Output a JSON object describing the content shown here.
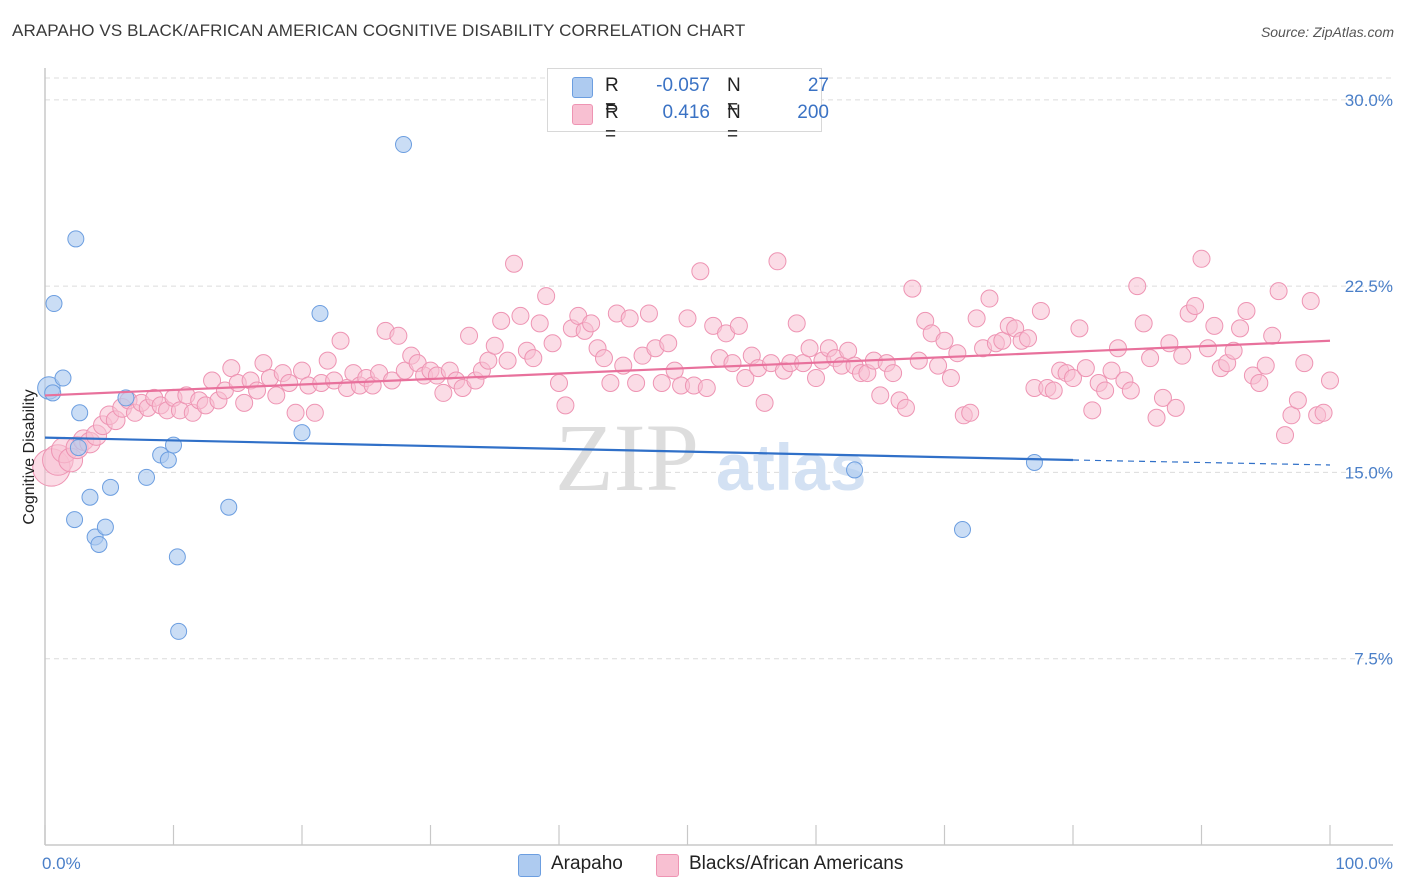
{
  "title": "ARAPAHO VS BLACK/AFRICAN AMERICAN COGNITIVE DISABILITY CORRELATION CHART",
  "source": "Source: ZipAtlas.com",
  "watermark": {
    "zip": "ZIP",
    "atlas": "atlas"
  },
  "colors": {
    "arapaho_fill": "#aecbf0",
    "arapaho_stroke": "#6c9ee0",
    "arapaho_line": "#3070c8",
    "black_fill": "#f8c0d2",
    "black_stroke": "#ee94b3",
    "black_line": "#e8719c",
    "tick_label": "#4a7fc8",
    "grid": "#dcdcdc"
  },
  "legend": {
    "rows": [
      {
        "r_label": "R =",
        "r_value": "-0.057",
        "n_label": "N =",
        "n_value": "27"
      },
      {
        "r_label": "R =",
        "r_value": "0.416",
        "n_label": "N =",
        "n_value": "200"
      }
    ],
    "bottom": [
      "Arapaho",
      "Blacks/African Americans"
    ]
  },
  "chart_data": {
    "type": "scatter",
    "title": "ARAPAHO VS BLACK/AFRICAN AMERICAN COGNITIVE DISABILITY CORRELATION CHART",
    "xlabel": "",
    "ylabel": "Cognitive Disability",
    "xlim": [
      0,
      100
    ],
    "ylim": [
      0,
      31
    ],
    "x_tick_labels": [
      "0.0%",
      "100.0%"
    ],
    "y_ticks": [
      7.5,
      15.0,
      22.5,
      30.0
    ],
    "y_tick_labels": [
      "7.5%",
      "15.0%",
      "22.5%",
      "30.0%"
    ],
    "grid": "horizontal dashed",
    "legend_position": "top-center",
    "series": [
      {
        "name": "Arapaho",
        "r": -0.057,
        "n": 27,
        "trend": {
          "x0": 0,
          "y0": 16.4,
          "x1": 80,
          "y1": 15.5,
          "dashed_to": 100,
          "y_end": 15.3
        },
        "points": [
          [
            0.3,
            18.4,
            1.4
          ],
          [
            0.6,
            18.2,
            1
          ],
          [
            0.7,
            21.8,
            1
          ],
          [
            1.4,
            18.8,
            1
          ],
          [
            2.3,
            13.1,
            1
          ],
          [
            2.4,
            24.4,
            1
          ],
          [
            2.6,
            16.0,
            1
          ],
          [
            2.7,
            17.4,
            1
          ],
          [
            3.5,
            14.0,
            1
          ],
          [
            3.9,
            12.4,
            1
          ],
          [
            4.2,
            12.1,
            1
          ],
          [
            4.7,
            12.8,
            1
          ],
          [
            5.1,
            14.4,
            1
          ],
          [
            6.3,
            18.0,
            1
          ],
          [
            7.9,
            14.8,
            1
          ],
          [
            9.0,
            15.7,
            1
          ],
          [
            9.6,
            15.5,
            1
          ],
          [
            10.0,
            16.1,
            1
          ],
          [
            10.3,
            11.6,
            1
          ],
          [
            10.4,
            8.6,
            1
          ],
          [
            14.3,
            13.6,
            1
          ],
          [
            20.0,
            16.6,
            1
          ],
          [
            21.4,
            21.4,
            1
          ],
          [
            27.9,
            28.2,
            1
          ],
          [
            63.0,
            15.1,
            1
          ],
          [
            71.4,
            12.7,
            1
          ],
          [
            77.0,
            15.4,
            1
          ]
        ]
      },
      {
        "name": "Blacks/African Americans",
        "r": 0.416,
        "n": 200,
        "trend": {
          "x0": 0,
          "y0": 18.1,
          "x1": 100,
          "y1": 20.3
        },
        "points": [
          [
            0.5,
            15.2,
            2.2
          ],
          [
            1.0,
            15.5,
            1.8
          ],
          [
            1.5,
            15.9,
            1.5
          ],
          [
            2.0,
            15.5,
            1.4
          ],
          [
            2.5,
            16.0,
            1.3
          ],
          [
            3.0,
            16.3,
            1.2
          ],
          [
            3.5,
            16.2,
            1.2
          ],
          [
            4.0,
            16.5,
            1.2
          ],
          [
            4.5,
            16.9,
            1.1
          ],
          [
            5.0,
            17.3,
            1.1
          ],
          [
            5.5,
            17.1,
            1.1
          ],
          [
            6.0,
            17.6,
            1.1
          ],
          [
            6.5,
            17.9,
            1
          ],
          [
            7.0,
            17.4,
            1
          ],
          [
            7.5,
            17.8,
            1
          ],
          [
            8.0,
            17.6,
            1
          ],
          [
            8.5,
            18.0,
            1
          ],
          [
            9.0,
            17.7,
            1
          ],
          [
            9.5,
            17.5,
            1
          ],
          [
            10.0,
            18.0,
            1
          ],
          [
            10.5,
            17.5,
            1
          ],
          [
            11.0,
            18.1,
            1
          ],
          [
            11.5,
            17.4,
            1
          ],
          [
            12.0,
            17.9,
            1
          ],
          [
            12.5,
            17.7,
            1
          ],
          [
            13.0,
            18.7,
            1
          ],
          [
            13.5,
            17.9,
            1
          ],
          [
            14.0,
            18.3,
            1
          ],
          [
            14.5,
            19.2,
            1
          ],
          [
            15.0,
            18.6,
            1
          ],
          [
            15.5,
            17.8,
            1
          ],
          [
            16.0,
            18.7,
            1
          ],
          [
            16.5,
            18.3,
            1
          ],
          [
            17.0,
            19.4,
            1
          ],
          [
            17.5,
            18.8,
            1
          ],
          [
            18.0,
            18.1,
            1
          ],
          [
            18.5,
            19.0,
            1
          ],
          [
            19.0,
            18.6,
            1
          ],
          [
            19.5,
            17.4,
            1
          ],
          [
            20.0,
            19.1,
            1
          ],
          [
            20.5,
            18.5,
            1
          ],
          [
            21.0,
            17.4,
            1
          ],
          [
            21.5,
            18.6,
            1
          ],
          [
            22.0,
            19.5,
            1
          ],
          [
            22.5,
            18.7,
            1
          ],
          [
            23.0,
            20.3,
            1
          ],
          [
            23.5,
            18.4,
            1
          ],
          [
            24.0,
            19.0,
            1
          ],
          [
            24.5,
            18.5,
            1
          ],
          [
            25.0,
            18.8,
            1
          ],
          [
            25.5,
            18.5,
            1
          ],
          [
            26.0,
            19.0,
            1
          ],
          [
            26.5,
            20.7,
            1
          ],
          [
            27.0,
            18.7,
            1
          ],
          [
            27.5,
            20.5,
            1
          ],
          [
            28.0,
            19.1,
            1
          ],
          [
            28.5,
            19.7,
            1
          ],
          [
            29.0,
            19.4,
            1
          ],
          [
            29.5,
            18.9,
            1
          ],
          [
            30.0,
            19.1,
            1
          ],
          [
            30.5,
            18.9,
            1
          ],
          [
            31.0,
            18.2,
            1
          ],
          [
            31.5,
            19.1,
            1
          ],
          [
            32.0,
            18.7,
            1
          ],
          [
            32.5,
            18.4,
            1
          ],
          [
            33.0,
            20.5,
            1
          ],
          [
            33.5,
            18.7,
            1
          ],
          [
            34.0,
            19.1,
            1
          ],
          [
            34.5,
            19.5,
            1
          ],
          [
            35.0,
            20.1,
            1
          ],
          [
            35.5,
            21.1,
            1
          ],
          [
            36.0,
            19.5,
            1
          ],
          [
            36.5,
            23.4,
            1
          ],
          [
            37.0,
            21.3,
            1
          ],
          [
            37.5,
            19.9,
            1
          ],
          [
            38.0,
            19.6,
            1
          ],
          [
            38.5,
            21.0,
            1
          ],
          [
            39.0,
            22.1,
            1
          ],
          [
            39.5,
            20.2,
            1
          ],
          [
            40.0,
            18.6,
            1
          ],
          [
            40.5,
            17.7,
            1
          ],
          [
            41.0,
            20.8,
            1
          ],
          [
            41.5,
            21.3,
            1
          ],
          [
            42.0,
            20.7,
            1
          ],
          [
            42.5,
            21.0,
            1
          ],
          [
            43.0,
            20.0,
            1
          ],
          [
            43.5,
            19.6,
            1
          ],
          [
            44.0,
            18.6,
            1
          ],
          [
            44.5,
            21.4,
            1
          ],
          [
            45.0,
            19.3,
            1
          ],
          [
            45.5,
            21.2,
            1
          ],
          [
            46.0,
            18.6,
            1
          ],
          [
            46.5,
            19.7,
            1
          ],
          [
            47.0,
            21.4,
            1
          ],
          [
            47.5,
            20.0,
            1
          ],
          [
            48.0,
            18.6,
            1
          ],
          [
            48.5,
            20.2,
            1
          ],
          [
            49.0,
            19.1,
            1
          ],
          [
            49.5,
            18.5,
            1
          ],
          [
            50.0,
            21.2,
            1
          ],
          [
            50.5,
            18.5,
            1
          ],
          [
            51.0,
            23.1,
            1
          ],
          [
            51.5,
            18.4,
            1
          ],
          [
            52.0,
            20.9,
            1
          ],
          [
            52.5,
            19.6,
            1
          ],
          [
            53.0,
            20.6,
            1
          ],
          [
            53.5,
            19.4,
            1
          ],
          [
            54.0,
            20.9,
            1
          ],
          [
            54.5,
            18.8,
            1
          ],
          [
            55.0,
            19.7,
            1
          ],
          [
            55.5,
            19.2,
            1
          ],
          [
            56.0,
            17.8,
            1
          ],
          [
            56.5,
            19.4,
            1
          ],
          [
            57.0,
            23.5,
            1
          ],
          [
            57.5,
            19.1,
            1
          ],
          [
            58.0,
            19.4,
            1
          ],
          [
            58.5,
            21.0,
            1
          ],
          [
            59.0,
            19.4,
            1
          ],
          [
            59.5,
            20.0,
            1
          ],
          [
            60.0,
            18.8,
            1
          ],
          [
            60.5,
            19.5,
            1
          ],
          [
            61.0,
            20.0,
            1
          ],
          [
            61.5,
            19.6,
            1
          ],
          [
            62.0,
            19.3,
            1
          ],
          [
            62.5,
            19.9,
            1
          ],
          [
            63.0,
            19.3,
            1
          ],
          [
            63.5,
            19.0,
            1
          ],
          [
            64.0,
            19.0,
            1
          ],
          [
            64.5,
            19.5,
            1
          ],
          [
            65.0,
            18.1,
            1
          ],
          [
            65.5,
            19.4,
            1
          ],
          [
            66.0,
            19.0,
            1
          ],
          [
            66.5,
            17.9,
            1
          ],
          [
            67.0,
            17.6,
            1
          ],
          [
            67.5,
            22.4,
            1
          ],
          [
            68.0,
            19.5,
            1
          ],
          [
            68.5,
            21.1,
            1
          ],
          [
            69.0,
            20.6,
            1
          ],
          [
            69.5,
            19.3,
            1
          ],
          [
            70.0,
            20.3,
            1
          ],
          [
            70.5,
            18.8,
            1
          ],
          [
            71.0,
            19.8,
            1
          ],
          [
            71.5,
            17.3,
            1
          ],
          [
            72.0,
            17.4,
            1
          ],
          [
            72.5,
            21.2,
            1
          ],
          [
            73.0,
            20.0,
            1
          ],
          [
            73.5,
            22.0,
            1
          ],
          [
            74.0,
            20.2,
            1
          ],
          [
            74.5,
            20.3,
            1
          ],
          [
            75.0,
            20.9,
            1
          ],
          [
            75.5,
            20.8,
            1
          ],
          [
            76.0,
            20.3,
            1
          ],
          [
            76.5,
            20.4,
            1
          ],
          [
            77.0,
            18.4,
            1
          ],
          [
            77.5,
            21.5,
            1
          ],
          [
            78.0,
            18.4,
            1
          ],
          [
            78.5,
            18.3,
            1
          ],
          [
            79.0,
            19.1,
            1
          ],
          [
            79.5,
            19.0,
            1
          ],
          [
            80.0,
            18.8,
            1
          ],
          [
            80.5,
            20.8,
            1
          ],
          [
            81.0,
            19.2,
            1
          ],
          [
            81.5,
            17.5,
            1
          ],
          [
            82.0,
            18.6,
            1
          ],
          [
            82.5,
            18.3,
            1
          ],
          [
            83.0,
            19.1,
            1
          ],
          [
            83.5,
            20.0,
            1
          ],
          [
            84.0,
            18.7,
            1
          ],
          [
            84.5,
            18.3,
            1
          ],
          [
            85.0,
            22.5,
            1
          ],
          [
            85.5,
            21.0,
            1
          ],
          [
            86.0,
            19.6,
            1
          ],
          [
            86.5,
            17.2,
            1
          ],
          [
            87.0,
            18.0,
            1
          ],
          [
            87.5,
            20.2,
            1
          ],
          [
            88.0,
            17.6,
            1
          ],
          [
            88.5,
            19.7,
            1
          ],
          [
            89.0,
            21.4,
            1
          ],
          [
            89.5,
            21.7,
            1
          ],
          [
            90.0,
            23.6,
            1
          ],
          [
            90.5,
            20.0,
            1
          ],
          [
            91.0,
            20.9,
            1
          ],
          [
            91.5,
            19.2,
            1
          ],
          [
            92.0,
            19.4,
            1
          ],
          [
            92.5,
            19.9,
            1
          ],
          [
            93.0,
            20.8,
            1
          ],
          [
            93.5,
            21.5,
            1
          ],
          [
            94.0,
            18.9,
            1
          ],
          [
            94.5,
            18.6,
            1
          ],
          [
            95.0,
            19.3,
            1
          ],
          [
            95.5,
            20.5,
            1
          ],
          [
            96.0,
            22.3,
            1
          ],
          [
            96.5,
            16.5,
            1
          ],
          [
            97.0,
            17.3,
            1
          ],
          [
            97.5,
            17.9,
            1
          ],
          [
            98.0,
            19.4,
            1
          ],
          [
            98.5,
            21.9,
            1
          ],
          [
            99.0,
            17.3,
            1
          ],
          [
            99.5,
            17.4,
            1
          ],
          [
            100.0,
            18.7,
            1
          ]
        ]
      }
    ]
  }
}
